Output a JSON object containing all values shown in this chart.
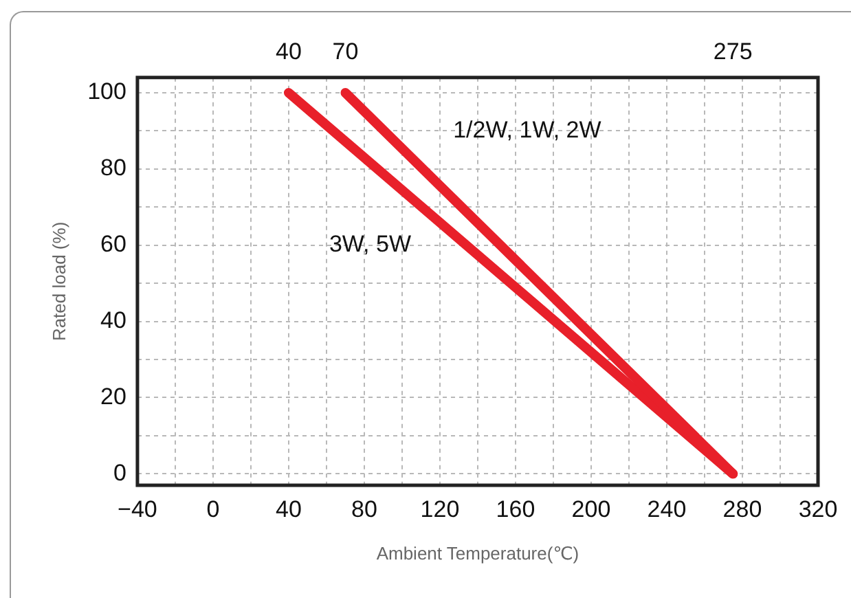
{
  "chart_data": {
    "type": "line",
    "xlabel": "Ambient Temperature(℃)",
    "ylabel": "Rated load (%)",
    "xlim": [
      -40,
      320
    ],
    "xticks": [
      -40,
      {
        "value": -20,
        "label": null
      },
      0,
      {
        "value": 20,
        "label": null
      },
      40,
      {
        "value": 60,
        "label": null
      },
      80,
      {
        "value": 100,
        "label": null
      },
      120,
      {
        "value": 140,
        "label": null
      },
      160,
      {
        "value": 180,
        "label": null
      },
      200,
      {
        "value": 220,
        "label": null
      },
      240,
      {
        "value": 260,
        "label": null
      },
      280,
      {
        "value": 300,
        "label": null
      },
      320
    ],
    "ylim": [
      -3,
      104
    ],
    "yticks": [
      0,
      {
        "value": 10,
        "label": null
      },
      20,
      {
        "value": 30,
        "label": null
      },
      40,
      {
        "value": 50,
        "label": null
      },
      60,
      {
        "value": 70,
        "label": null
      },
      80,
      {
        "value": 90,
        "label": null
      },
      100
    ],
    "x2lim": [
      -40,
      320
    ],
    "x2ticks": [
      40,
      70,
      275
    ],
    "grid": true,
    "legend": false,
    "marker": "none",
    "line_style": "solid",
    "series": [
      {
        "name": "1/2W, 1W, 2W",
        "color": "#e8202a",
        "x": [
          70,
          275
        ],
        "values": [
          100,
          0
        ]
      },
      {
        "name": "3W, 5W",
        "color": "#e8202a",
        "x": [
          40,
          275
        ],
        "values": [
          100,
          0
        ]
      }
    ]
  }
}
